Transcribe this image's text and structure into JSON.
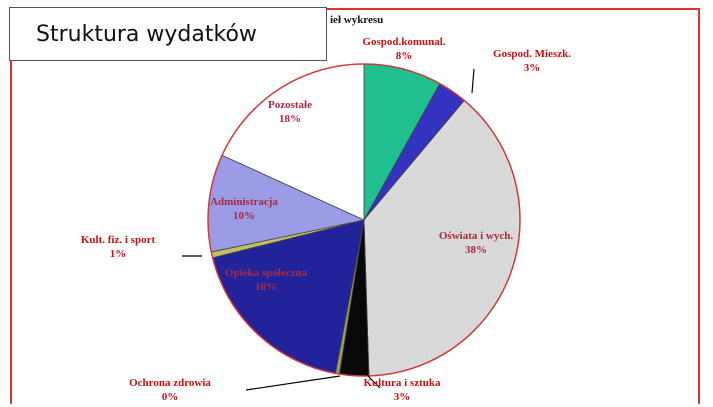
{
  "slide": {
    "title": "Struktura wydatków",
    "header_fragment": "ieł wykresu"
  },
  "chart_data": {
    "type": "pie",
    "title": "",
    "slices": [
      {
        "label": "Gospod.komunal.",
        "value": 8,
        "value_label": "8%",
        "color": "#1fbf8f"
      },
      {
        "label": "Gospod. Mieszk.",
        "value": 3,
        "value_label": "3%",
        "color": "#3333c0"
      },
      {
        "label": "Oświata i wych.",
        "value": 38,
        "value_label": "38%",
        "color": "#d9d9d9"
      },
      {
        "label": "Kultura i sztuka",
        "value": 3,
        "value_label": "3%",
        "color": "#080808"
      },
      {
        "label": "Ochrona zdrowia",
        "value": 0.4,
        "value_label": "0%",
        "color": "#a0a050"
      },
      {
        "label": "Opieka społeczna",
        "value": 18,
        "value_label": "18%",
        "color": "#22229a"
      },
      {
        "label": "Kult. fiz. i sport",
        "value": 0.6,
        "value_label": "1%",
        "color": "#c0c060"
      },
      {
        "label": "Administracja",
        "value": 10,
        "value_label": "10%",
        "color": "#9b9be6"
      },
      {
        "label": "Pozostałe",
        "value": 18,
        "value_label": "18%",
        "color": "#ffffff"
      }
    ],
    "label_colors": {
      "dark": "#cc1010",
      "on_dark": "#a82a40"
    }
  }
}
